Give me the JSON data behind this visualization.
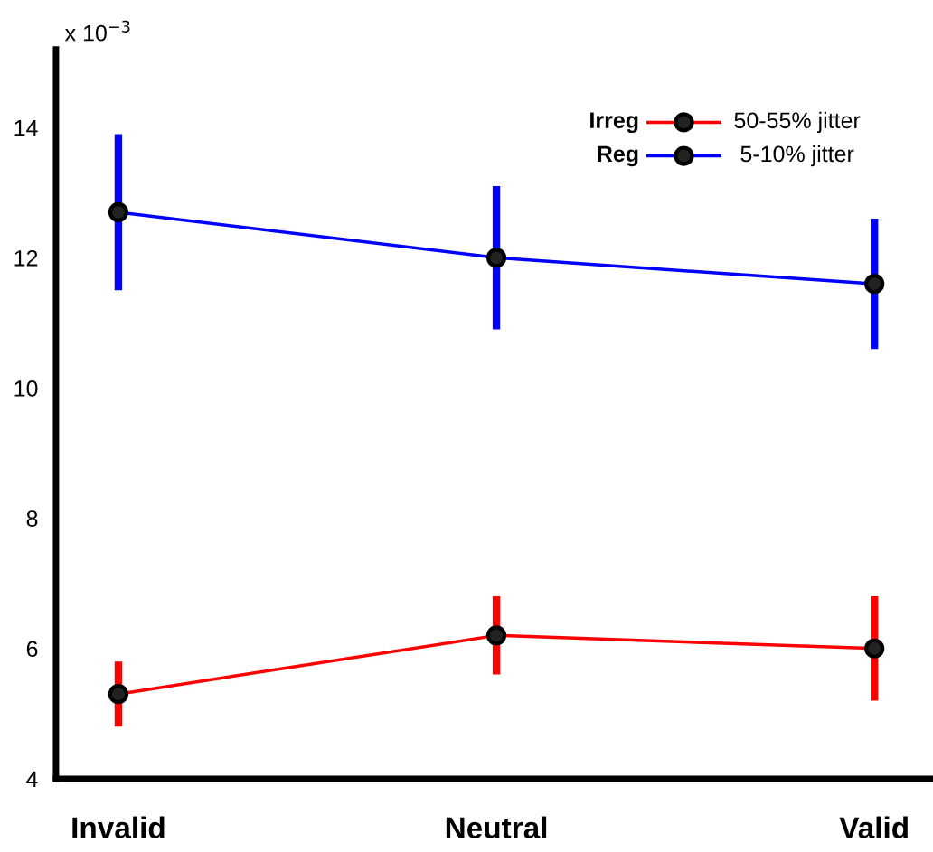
{
  "chart_data": {
    "type": "line",
    "ylabel": "x 10$^{−3}$",
    "categories": [
      "Invalid",
      "Neutral",
      "Valid"
    ],
    "series": [
      {
        "name": "Irreg",
        "color": "#ff0000",
        "values": [
          5.3,
          6.2,
          6.0
        ],
        "errors": [
          [
            4.8,
            5.8
          ],
          [
            5.6,
            6.8
          ],
          [
            5.2,
            6.8
          ]
        ]
      },
      {
        "name": "Reg",
        "color": "#0000ff",
        "values": [
          12.7,
          12.0,
          11.6
        ],
        "errors": [
          [
            11.5,
            13.9
          ],
          [
            10.9,
            13.1
          ],
          [
            10.6,
            12.6
          ]
        ]
      }
    ],
    "annotations": [
      "50-55% jitter",
      "5-10% jitter"
    ],
    "ylim": [
      4,
      15.2
    ],
    "yticks": [
      4,
      6,
      8,
      10,
      12,
      14
    ],
    "marker": "circle",
    "line_style": "solid",
    "legend": "top right",
    "grid": false
  }
}
